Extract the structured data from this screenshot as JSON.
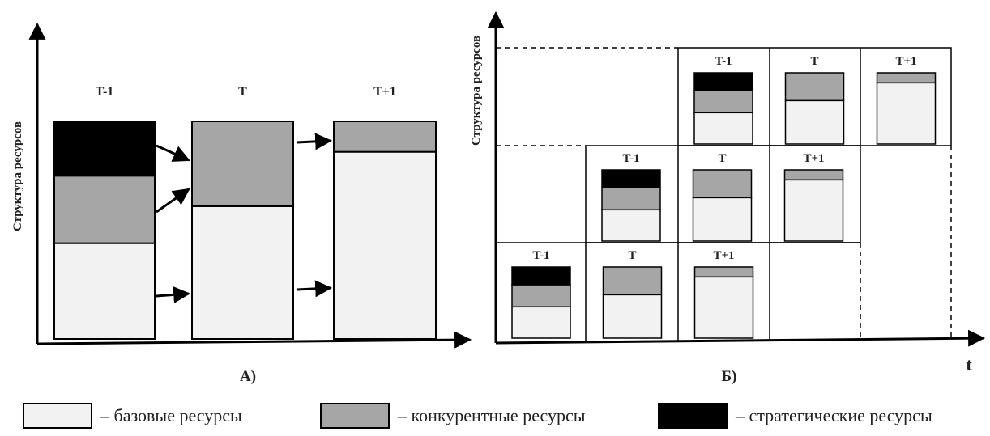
{
  "colors": {
    "base": "#f2f2f2",
    "competitive": "#a6a6a6",
    "strategic": "#000000"
  },
  "panel_a": {
    "y_axis_label": "Структура ресурсов",
    "caption": "А)",
    "columns": [
      {
        "label": "T-1",
        "base": 0.44,
        "competitive": 0.31,
        "strategic": 0.25
      },
      {
        "label": "T",
        "base": 0.61,
        "competitive": 0.39,
        "strategic": 0.0
      },
      {
        "label": "T+1",
        "base": 0.86,
        "competitive": 0.14,
        "strategic": 0.0
      }
    ]
  },
  "panel_b": {
    "y_axis_label": "Структура ресурсов",
    "x_axis_label": "t",
    "caption": "Б)",
    "rows": [
      {
        "cells": [
          {
            "label": "T-1",
            "base": 0.44,
            "competitive": 0.31,
            "strategic": 0.25
          },
          {
            "label": "T",
            "base": 0.61,
            "competitive": 0.39,
            "strategic": 0.0
          },
          {
            "label": "T+1",
            "base": 0.86,
            "competitive": 0.14,
            "strategic": 0.0
          }
        ]
      },
      {
        "cells": [
          {
            "label": "T-1",
            "base": 0.44,
            "competitive": 0.31,
            "strategic": 0.25
          },
          {
            "label": "T",
            "base": 0.61,
            "competitive": 0.39,
            "strategic": 0.0
          },
          {
            "label": "T+1",
            "base": 0.86,
            "competitive": 0.14,
            "strategic": 0.0
          }
        ]
      },
      {
        "cells": [
          {
            "label": "T-1",
            "base": 0.44,
            "competitive": 0.31,
            "strategic": 0.25
          },
          {
            "label": "T",
            "base": 0.61,
            "competitive": 0.39,
            "strategic": 0.0
          },
          {
            "label": "T+1",
            "base": 0.86,
            "competitive": 0.14,
            "strategic": 0.0
          }
        ]
      }
    ]
  },
  "legend": [
    {
      "key": "base",
      "text": "– базовые ресурсы"
    },
    {
      "key": "competitive",
      "text": "– конкурентные ресурсы"
    },
    {
      "key": "strategic",
      "text": "– стратегические ресурсы"
    }
  ]
}
